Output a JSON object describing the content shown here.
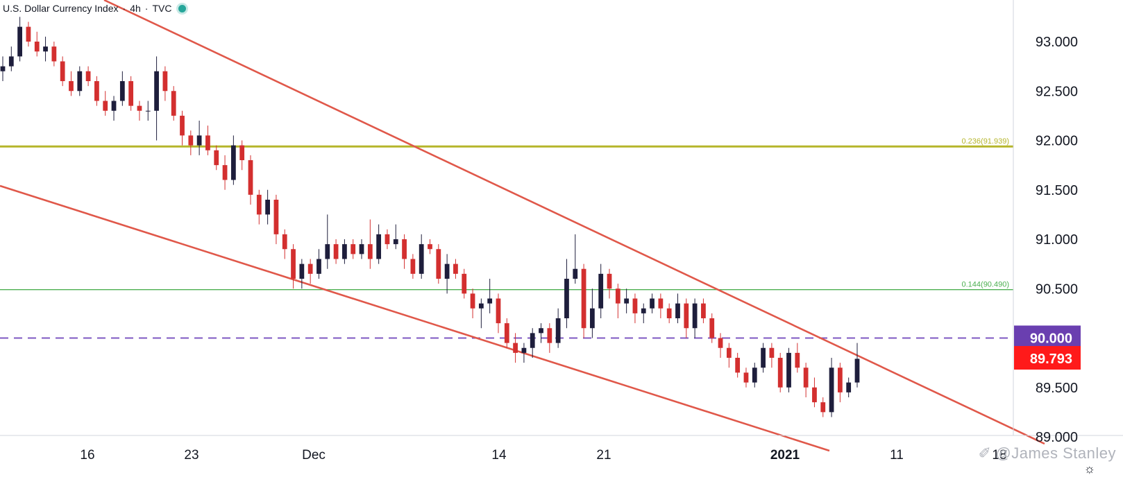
{
  "header": {
    "symbol": "U.S. Dollar Currency Index",
    "interval": "4h",
    "source": "TVC"
  },
  "watermark": "@James Stanley",
  "icons": {
    "status": "status-dot-icon",
    "watermark": "bird-logo-icon",
    "settings": "gear-icon"
  },
  "colors": {
    "up_body": "#1e1e3c",
    "down_body": "#d32f2f",
    "trendline": "#e0584a",
    "fib_level_1": "#b5b52a",
    "fib_level_2": "#4caf50",
    "dashed_level": "#7e57c2",
    "price_badge": "#ff1a1a",
    "level_badge": "#6a3fb0"
  },
  "chart_data": {
    "type": "candlestick",
    "title": "U.S. Dollar Currency Index · 4h · TVC",
    "ylim": [
      88.95,
      93.45
    ],
    "y_ticks": [
      "93.000",
      "92.500",
      "92.000",
      "91.500",
      "91.000",
      "90.500",
      "90.000",
      "89.500",
      "89.000"
    ],
    "x_ticks": [
      "16",
      "23",
      "Dec",
      "14",
      "21",
      "2021",
      "11",
      "18"
    ],
    "x_tick_bold": [
      "2021"
    ],
    "horizontal_levels": [
      {
        "label": "0.236(91.939)",
        "value": 91.939,
        "style": "solid"
      },
      {
        "label": "0.144(90.490)",
        "value": 90.49,
        "style": "solid"
      },
      {
        "label": "90.000",
        "value": 90.0,
        "style": "dashed"
      }
    ],
    "last_price": {
      "label": "89.793",
      "value": 89.793
    },
    "trendlines": [
      {
        "from": [
          "Nov 10",
          93.6
        ],
        "to": [
          "Jan 18",
          89.05
        ]
      },
      {
        "from": [
          "Nov 12",
          91.6
        ],
        "to": [
          "Jan 2",
          89.0
        ]
      }
    ],
    "ohlc": [
      [
        92.7,
        92.85,
        92.6,
        92.75
      ],
      [
        92.75,
        92.95,
        92.7,
        92.85
      ],
      [
        92.85,
        93.25,
        92.8,
        93.15
      ],
      [
        93.15,
        93.2,
        92.95,
        93.0
      ],
      [
        93.0,
        93.1,
        92.85,
        92.9
      ],
      [
        92.9,
        93.05,
        92.8,
        92.95
      ],
      [
        92.95,
        93.0,
        92.75,
        92.8
      ],
      [
        92.8,
        92.85,
        92.55,
        92.6
      ],
      [
        92.6,
        92.7,
        92.45,
        92.5
      ],
      [
        92.5,
        92.75,
        92.45,
        92.7
      ],
      [
        92.7,
        92.75,
        92.55,
        92.6
      ],
      [
        92.6,
        92.65,
        92.35,
        92.4
      ],
      [
        92.4,
        92.5,
        92.25,
        92.3
      ],
      [
        92.3,
        92.45,
        92.2,
        92.4
      ],
      [
        92.4,
        92.7,
        92.35,
        92.6
      ],
      [
        92.6,
        92.65,
        92.3,
        92.35
      ],
      [
        92.35,
        92.4,
        92.2,
        92.3
      ],
      [
        92.3,
        92.4,
        92.2,
        92.3
      ],
      [
        92.3,
        92.85,
        92.0,
        92.7
      ],
      [
        92.7,
        92.75,
        92.4,
        92.5
      ],
      [
        92.5,
        92.55,
        92.2,
        92.25
      ],
      [
        92.25,
        92.3,
        91.95,
        92.05
      ],
      [
        92.05,
        92.1,
        91.85,
        91.95
      ],
      [
        91.95,
        92.2,
        91.85,
        92.05
      ],
      [
        92.05,
        92.15,
        91.85,
        91.9
      ],
      [
        91.9,
        91.95,
        91.7,
        91.75
      ],
      [
        91.75,
        91.85,
        91.5,
        91.6
      ],
      [
        91.6,
        92.05,
        91.55,
        91.95
      ],
      [
        91.95,
        92.0,
        91.7,
        91.8
      ],
      [
        91.8,
        91.85,
        91.35,
        91.45
      ],
      [
        91.45,
        91.5,
        91.15,
        91.25
      ],
      [
        91.25,
        91.5,
        91.15,
        91.4
      ],
      [
        91.4,
        91.45,
        90.95,
        91.05
      ],
      [
        91.05,
        91.1,
        90.8,
        90.9
      ],
      [
        90.9,
        90.95,
        90.5,
        90.6
      ],
      [
        90.6,
        90.8,
        90.5,
        90.75
      ],
      [
        90.75,
        90.8,
        90.55,
        90.65
      ],
      [
        90.65,
        90.9,
        90.6,
        90.8
      ],
      [
        90.8,
        91.25,
        90.7,
        90.95
      ],
      [
        90.95,
        91.0,
        90.75,
        90.8
      ],
      [
        90.8,
        91.0,
        90.75,
        90.95
      ],
      [
        90.95,
        91.0,
        90.8,
        90.85
      ],
      [
        90.85,
        91.0,
        90.8,
        90.95
      ],
      [
        90.95,
        91.2,
        90.7,
        90.8
      ],
      [
        90.8,
        91.15,
        90.75,
        91.05
      ],
      [
        91.05,
        91.1,
        90.9,
        90.95
      ],
      [
        90.95,
        91.15,
        90.9,
        91.0
      ],
      [
        91.0,
        91.05,
        90.7,
        90.8
      ],
      [
        90.8,
        90.85,
        90.6,
        90.65
      ],
      [
        90.65,
        91.05,
        90.6,
        90.95
      ],
      [
        90.95,
        91.0,
        90.85,
        90.9
      ],
      [
        90.9,
        90.95,
        90.55,
        90.6
      ],
      [
        90.6,
        90.85,
        90.45,
        90.75
      ],
      [
        90.75,
        90.8,
        90.6,
        90.65
      ],
      [
        90.65,
        90.7,
        90.4,
        90.45
      ],
      [
        90.45,
        90.5,
        90.2,
        90.3
      ],
      [
        90.3,
        90.4,
        90.1,
        90.35
      ],
      [
        90.35,
        90.6,
        90.25,
        90.4
      ],
      [
        90.4,
        90.45,
        90.05,
        90.15
      ],
      [
        90.15,
        90.2,
        89.9,
        89.95
      ],
      [
        89.95,
        90.05,
        89.75,
        89.85
      ],
      [
        89.85,
        89.95,
        89.75,
        89.9
      ],
      [
        89.9,
        90.1,
        89.8,
        90.05
      ],
      [
        90.05,
        90.15,
        89.95,
        90.1
      ],
      [
        90.1,
        90.15,
        89.85,
        89.95
      ],
      [
        89.95,
        90.3,
        89.9,
        90.2
      ],
      [
        90.2,
        90.8,
        90.1,
        90.6
      ],
      [
        90.6,
        91.05,
        90.55,
        90.7
      ],
      [
        90.7,
        90.75,
        90.0,
        90.1
      ],
      [
        90.1,
        90.5,
        90.0,
        90.3
      ],
      [
        90.3,
        90.75,
        90.2,
        90.65
      ],
      [
        90.65,
        90.7,
        90.4,
        90.5
      ],
      [
        90.5,
        90.55,
        90.2,
        90.35
      ],
      [
        90.35,
        90.5,
        90.25,
        90.4
      ],
      [
        90.4,
        90.45,
        90.15,
        90.25
      ],
      [
        90.25,
        90.35,
        90.15,
        90.3
      ],
      [
        90.3,
        90.45,
        90.25,
        90.4
      ],
      [
        90.4,
        90.45,
        90.2,
        90.3
      ],
      [
        90.3,
        90.35,
        90.15,
        90.2
      ],
      [
        90.2,
        90.45,
        90.15,
        90.35
      ],
      [
        90.35,
        90.4,
        90.0,
        90.1
      ],
      [
        90.1,
        90.4,
        90.0,
        90.35
      ],
      [
        90.35,
        90.4,
        90.15,
        90.2
      ],
      [
        90.2,
        90.25,
        89.95,
        90.0
      ],
      [
        90.0,
        90.05,
        89.8,
        89.9
      ],
      [
        89.9,
        89.95,
        89.7,
        89.8
      ],
      [
        89.8,
        89.85,
        89.6,
        89.65
      ],
      [
        89.65,
        89.7,
        89.5,
        89.55
      ],
      [
        89.55,
        89.75,
        89.5,
        89.7
      ],
      [
        89.7,
        89.95,
        89.65,
        89.9
      ],
      [
        89.9,
        89.95,
        89.7,
        89.8
      ],
      [
        89.8,
        89.85,
        89.45,
        89.5
      ],
      [
        89.5,
        89.9,
        89.45,
        89.85
      ],
      [
        89.85,
        89.95,
        89.65,
        89.7
      ],
      [
        89.7,
        89.75,
        89.4,
        89.5
      ],
      [
        89.5,
        89.6,
        89.3,
        89.35
      ],
      [
        89.35,
        89.4,
        89.2,
        89.25
      ],
      [
        89.25,
        89.8,
        89.2,
        89.7
      ],
      [
        89.7,
        89.75,
        89.35,
        89.45
      ],
      [
        89.45,
        89.6,
        89.4,
        89.55
      ],
      [
        89.55,
        89.95,
        89.5,
        89.79
      ]
    ]
  }
}
